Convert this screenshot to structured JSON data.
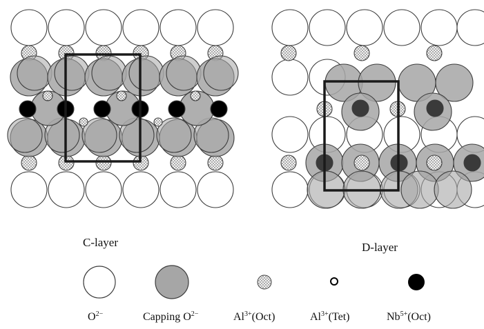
{
  "panels": {
    "left_title": "C-layer",
    "right_title": "D-layer"
  },
  "legend": [
    {
      "key": "oxide",
      "base": "O",
      "sup": "2−",
      "rest": "",
      "icon": "open-circle-icon"
    },
    {
      "key": "capping",
      "base": "Capping O",
      "sup": "2−",
      "rest": "",
      "icon": "grey-circle-icon"
    },
    {
      "key": "al_oct",
      "base": "Al",
      "sup": "3+",
      "rest": "(Oct)",
      "icon": "dotted-circle-icon"
    },
    {
      "key": "al_tet",
      "base": "Al",
      "sup": "3+",
      "rest": "(Tet)",
      "icon": "small-ring-icon"
    },
    {
      "key": "nb_oct",
      "base": "Nb",
      "sup": "5+",
      "rest": "(Oct)",
      "icon": "black-dot-icon"
    }
  ],
  "colors": {
    "oxide_fill": "#ffffff",
    "capping_fill": "#a6a6a6",
    "nb_fill": "#000000",
    "nb_dark_fill": "#3a3a3a",
    "outline": "#3c3c3c"
  }
}
